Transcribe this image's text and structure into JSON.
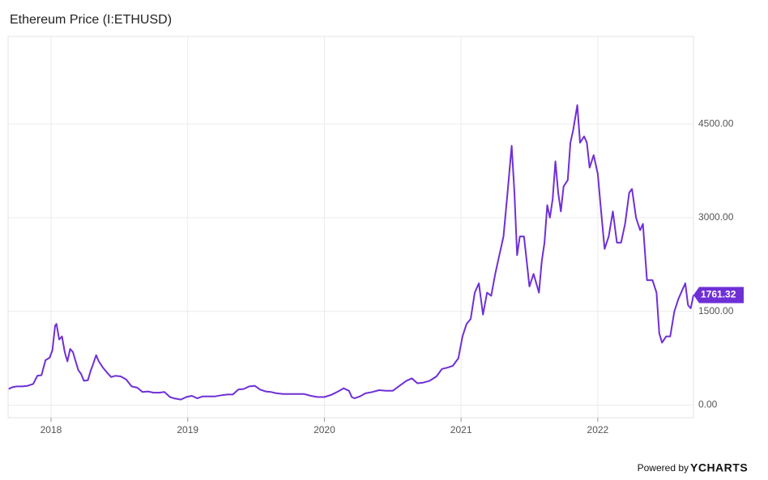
{
  "chart_data": {
    "type": "line",
    "title": "Ethereum Price (I:ETHUSD)",
    "credit": "Powered by",
    "brand": "YCHARTS",
    "grid": true,
    "xlim": [
      2017.686,
      2022.7
    ],
    "xticks": [
      2018,
      2019,
      2020,
      2021,
      2022
    ],
    "ylim": [
      -200,
      5900
    ],
    "yticks": [
      {
        "value": 0,
        "label": "0.00"
      },
      {
        "value": 1500,
        "label": "1500.00"
      },
      {
        "value": 3000,
        "label": "3000.00"
      },
      {
        "value": 4500,
        "label": "4500.00"
      }
    ],
    "x": [
      2017.69,
      2017.72,
      2017.75,
      2017.79,
      2017.83,
      2017.87,
      2017.9,
      2017.93,
      2017.96,
      2017.99,
      2018.01,
      2018.03,
      2018.04,
      2018.06,
      2018.08,
      2018.1,
      2018.12,
      2018.14,
      2018.16,
      2018.18,
      2018.2,
      2018.22,
      2018.24,
      2018.27,
      2018.29,
      2018.31,
      2018.33,
      2018.35,
      2018.38,
      2018.41,
      2018.44,
      2018.47,
      2018.51,
      2018.55,
      2018.59,
      2018.63,
      2018.67,
      2018.71,
      2018.75,
      2018.79,
      2018.83,
      2018.87,
      2018.9,
      2018.95,
      2018.99,
      2019.03,
      2019.07,
      2019.11,
      2019.15,
      2019.2,
      2019.25,
      2019.29,
      2019.33,
      2019.37,
      2019.41,
      2019.45,
      2019.49,
      2019.53,
      2019.57,
      2019.61,
      2019.65,
      2019.7,
      2019.75,
      2019.8,
      2019.85,
      2019.9,
      2019.95,
      2020.0,
      2020.05,
      2020.1,
      2020.14,
      2020.18,
      2020.2,
      2020.22,
      2020.26,
      2020.3,
      2020.35,
      2020.4,
      2020.45,
      2020.5,
      2020.55,
      2020.6,
      2020.64,
      2020.68,
      2020.72,
      2020.77,
      2020.82,
      2020.86,
      2020.9,
      2020.94,
      2020.98,
      2021.01,
      2021.04,
      2021.07,
      2021.1,
      2021.13,
      2021.16,
      2021.19,
      2021.22,
      2021.25,
      2021.28,
      2021.31,
      2021.34,
      2021.36,
      2021.37,
      2021.39,
      2021.41,
      2021.43,
      2021.46,
      2021.48,
      2021.5,
      2021.53,
      2021.55,
      2021.57,
      2021.59,
      2021.61,
      2021.63,
      2021.65,
      2021.67,
      2021.69,
      2021.71,
      2021.73,
      2021.75,
      2021.78,
      2021.8,
      2021.82,
      2021.85,
      2021.87,
      2021.9,
      2021.92,
      2021.94,
      2021.97,
      2022.0,
      2022.02,
      2022.05,
      2022.08,
      2022.11,
      2022.14,
      2022.17,
      2022.2,
      2022.23,
      2022.25,
      2022.28,
      2022.31,
      2022.33,
      2022.36,
      2022.4,
      2022.43,
      2022.45,
      2022.47,
      2022.5,
      2022.53,
      2022.56,
      2022.59,
      2022.62,
      2022.64,
      2022.66,
      2022.68,
      2022.7
    ],
    "series": [
      {
        "name": "Ethereum Price",
        "color": "#6f2fd6",
        "values": [
          260,
          290,
          300,
          300,
          310,
          340,
          470,
          480,
          720,
          760,
          880,
          1270,
          1300,
          1050,
          1100,
          850,
          700,
          900,
          850,
          700,
          560,
          500,
          390,
          400,
          550,
          670,
          800,
          700,
          600,
          520,
          450,
          470,
          460,
          410,
          300,
          280,
          210,
          220,
          200,
          200,
          210,
          130,
          110,
          90,
          130,
          150,
          110,
          140,
          140,
          140,
          160,
          170,
          170,
          250,
          260,
          300,
          310,
          250,
          220,
          210,
          190,
          180,
          180,
          180,
          180,
          150,
          130,
          130,
          165,
          220,
          270,
          230,
          130,
          110,
          140,
          190,
          210,
          240,
          230,
          230,
          310,
          390,
          430,
          350,
          360,
          390,
          460,
          580,
          600,
          630,
          750,
          1100,
          1300,
          1380,
          1800,
          1950,
          1450,
          1800,
          1750,
          2100,
          2400,
          2700,
          3400,
          3900,
          4150,
          3400,
          2400,
          2700,
          2700,
          2300,
          1900,
          2100,
          1950,
          1800,
          2300,
          2600,
          3200,
          3000,
          3300,
          3900,
          3400,
          3100,
          3500,
          3600,
          4200,
          4400,
          4800,
          4200,
          4300,
          4200,
          3800,
          4000,
          3700,
          3200,
          2500,
          2700,
          3100,
          2600,
          2600,
          2900,
          3400,
          3460,
          3000,
          2800,
          2900,
          2000,
          2000,
          1800,
          1150,
          1000,
          1100,
          1100,
          1500,
          1700,
          1850,
          1950,
          1600,
          1550,
          1761.32
        ]
      }
    ]
  }
}
